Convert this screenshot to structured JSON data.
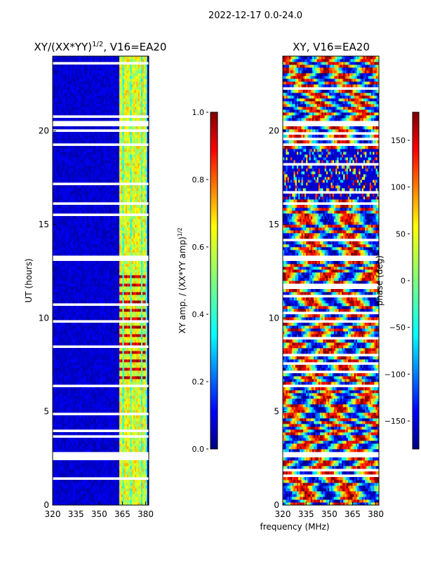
{
  "figure": {
    "suptitle": "2022-12-17 0.0-24.0",
    "xlabel": "frequency (MHz)"
  },
  "colorbar_left": {
    "label": "XY amp. / (XX*YY amp)",
    "label_power": "1/2",
    "ticks": [
      "0.0",
      "0.2",
      "0.4",
      "0.6",
      "0.8",
      "1.0"
    ]
  },
  "colorbar_right": {
    "label": "phase (deg)",
    "ticks": [
      "−150",
      "−100",
      "−50",
      "0",
      "50",
      "100",
      "150"
    ]
  },
  "colors": {
    "jet": [
      "#00007f",
      "#0000ff",
      "#007fff",
      "#00ffff",
      "#7fff7f",
      "#ffff00",
      "#ff7f00",
      "#ff0000",
      "#7f0000"
    ]
  },
  "chart_data": [
    {
      "type": "heatmap",
      "title": "XY/(XX*YY)",
      "title_power": "1/2",
      "title_suffix": ", V16=EA20",
      "xlabel": "frequency (MHz)",
      "ylabel": "UT (hours)",
      "xlim": [
        320,
        382
      ],
      "ylim": [
        0,
        24
      ],
      "xticks": [
        320,
        335,
        350,
        365,
        380
      ],
      "yticks": [
        0,
        5,
        10,
        15,
        20
      ],
      "colorbar": {
        "label": "XY amp. / (XX*YY amp)^1/2",
        "range": [
          0.0,
          1.0
        ]
      },
      "flagged_time_bands_hours": [
        [
          2.5,
          2.8
        ],
        [
          6.3,
          6.5
        ],
        [
          9.8,
          9.9
        ],
        [
          13.1,
          13.4
        ],
        [
          16.0,
          16.2
        ],
        [
          19.2,
          19.4
        ],
        [
          20.3,
          20.6
        ]
      ],
      "bright_channel_columns_mhz": [
        364,
        367,
        369,
        372,
        374,
        376,
        379
      ],
      "notes": "amplitude ratio ~0.0-0.2 (dark blue) over most channels; 0.4-1.0 over 363-381 MHz, peak ~0.9-1.0 between 6.5 and 12.5 h"
    },
    {
      "type": "heatmap",
      "title": "XY, V16=EA20",
      "xlabel": "frequency (MHz)",
      "ylabel": "",
      "xlim": [
        320,
        382
      ],
      "ylim": [
        0,
        24
      ],
      "xticks": [
        320,
        335,
        350,
        365,
        380
      ],
      "yticks": [
        0,
        5,
        10,
        15,
        20
      ],
      "colorbar": {
        "label": "phase (deg)",
        "range": [
          -180,
          180
        ]
      },
      "flagged_time_bands_hours": [
        [
          2.5,
          2.8
        ],
        [
          6.3,
          6.5
        ],
        [
          9.8,
          9.9
        ],
        [
          13.1,
          13.4
        ],
        [
          16.0,
          16.2
        ],
        [
          19.2,
          19.4
        ],
        [
          20.3,
          20.6
        ]
      ],
      "noisy_time_range_hours": [
        16.3,
        19.0
      ],
      "notes": "XY phase spanning full -180 to 180 deg; random noise between ~16.3 and ~19 h"
    }
  ]
}
